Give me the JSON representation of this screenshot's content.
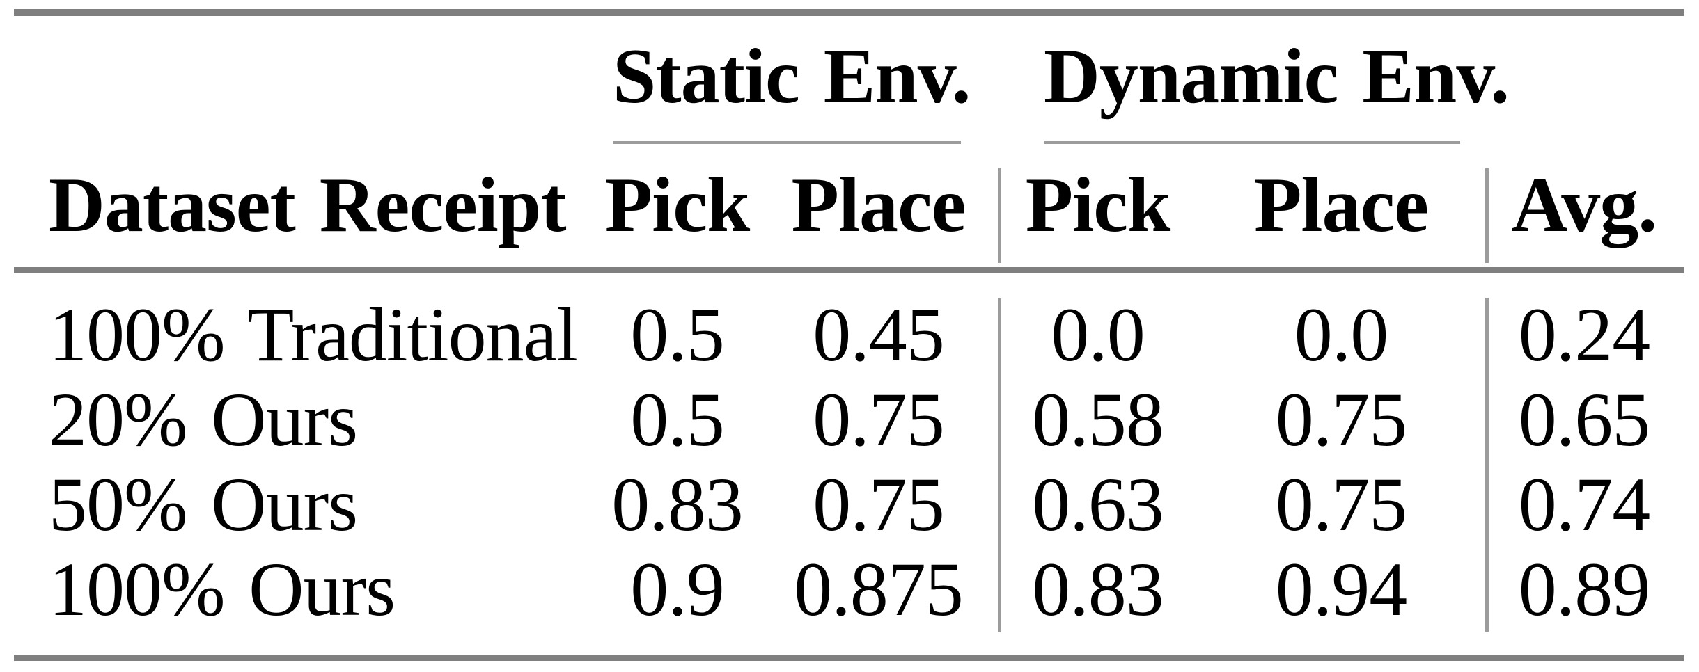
{
  "table": {
    "groups": [
      {
        "label": "Static Env."
      },
      {
        "label": "Dynamic Env."
      }
    ],
    "header": {
      "dataset": "Dataset Receipt",
      "static_pick": "Pick",
      "static_place": "Place",
      "dynamic_pick": "Pick",
      "dynamic_place": "Place",
      "avg": "Avg."
    },
    "rows": [
      {
        "label": "100% Traditional",
        "static_pick": "0.5",
        "static_place": "0.45",
        "dynamic_pick": "0.0",
        "dynamic_place": "0.0",
        "avg": "0.24"
      },
      {
        "label": "20% Ours",
        "static_pick": "0.5",
        "static_place": "0.75",
        "dynamic_pick": "0.58",
        "dynamic_place": "0.75",
        "avg": "0.65"
      },
      {
        "label": "50% Ours",
        "static_pick": "0.83",
        "static_place": "0.75",
        "dynamic_pick": "0.63",
        "dynamic_place": "0.75",
        "avg": "0.74"
      },
      {
        "label": "100% Ours",
        "static_pick": "0.9",
        "static_place": "0.875",
        "dynamic_pick": "0.83",
        "dynamic_place": "0.94",
        "avg": "0.89"
      }
    ],
    "colors": {
      "heavy_rule": "#7f7f7f",
      "light_rule": "#9c9c9c",
      "text": "#000000",
      "background": "#ffffff"
    }
  }
}
